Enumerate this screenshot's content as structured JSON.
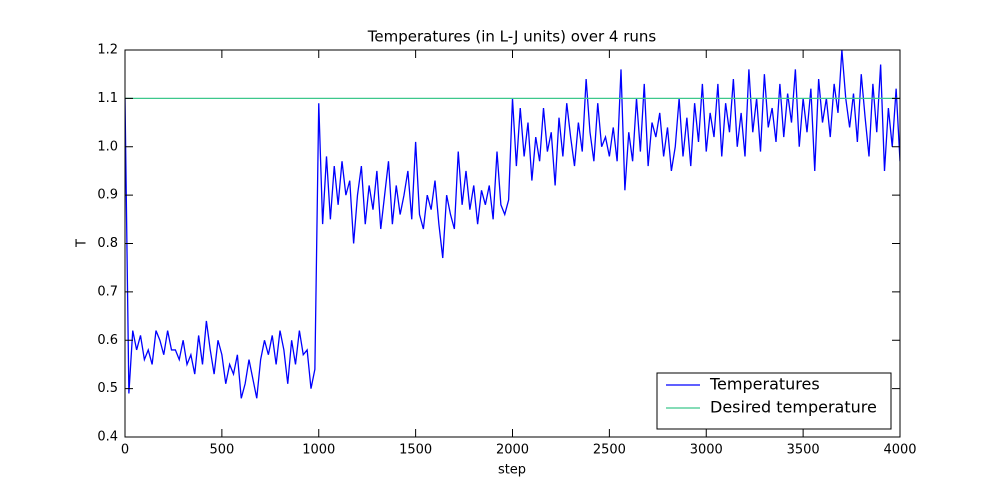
{
  "chart_data": {
    "type": "line",
    "title": "Temperatures (in L-J units) over 4 runs",
    "xlabel": "step",
    "ylabel": "T",
    "xlim": [
      0,
      4000
    ],
    "xticks": [
      0,
      500,
      1000,
      1500,
      2000,
      2500,
      3000,
      3500,
      4000
    ],
    "ylim": [
      0.4,
      1.2
    ],
    "yticks": [
      0.4,
      0.5,
      0.6,
      0.7,
      0.8,
      0.9,
      {
        "value": 1,
        "label": "1.0"
      },
      1.1,
      1.2
    ],
    "legend": "lower right",
    "series": [
      {
        "name": "Temperatures",
        "color": "#0000ff",
        "x": [
          0,
          20,
          40,
          60,
          80,
          100,
          120,
          140,
          160,
          180,
          200,
          220,
          240,
          260,
          280,
          300,
          320,
          340,
          360,
          380,
          400,
          420,
          440,
          460,
          480,
          500,
          520,
          540,
          560,
          580,
          600,
          620,
          640,
          660,
          680,
          700,
          720,
          740,
          760,
          780,
          800,
          820,
          840,
          860,
          880,
          900,
          920,
          940,
          960,
          980,
          1000,
          1020,
          1040,
          1060,
          1080,
          1100,
          1120,
          1140,
          1160,
          1180,
          1200,
          1220,
          1240,
          1260,
          1280,
          1300,
          1320,
          1340,
          1360,
          1380,
          1400,
          1420,
          1440,
          1460,
          1480,
          1500,
          1520,
          1540,
          1560,
          1580,
          1600,
          1620,
          1640,
          1660,
          1680,
          1700,
          1720,
          1740,
          1760,
          1780,
          1800,
          1820,
          1840,
          1860,
          1880,
          1900,
          1920,
          1940,
          1960,
          1980,
          2000,
          2020,
          2040,
          2060,
          2080,
          2100,
          2120,
          2140,
          2160,
          2180,
          2200,
          2220,
          2240,
          2260,
          2280,
          2300,
          2320,
          2340,
          2360,
          2380,
          2400,
          2420,
          2440,
          2460,
          2480,
          2500,
          2520,
          2540,
          2560,
          2580,
          2600,
          2620,
          2640,
          2660,
          2680,
          2700,
          2720,
          2740,
          2760,
          2780,
          2800,
          2820,
          2840,
          2860,
          2880,
          2900,
          2920,
          2940,
          2960,
          2980,
          3000,
          3020,
          3040,
          3060,
          3080,
          3100,
          3120,
          3140,
          3160,
          3180,
          3200,
          3220,
          3240,
          3260,
          3280,
          3300,
          3320,
          3340,
          3360,
          3380,
          3400,
          3420,
          3440,
          3460,
          3480,
          3500,
          3520,
          3540,
          3560,
          3580,
          3600,
          3620,
          3640,
          3660,
          3680,
          3700,
          3720,
          3740,
          3760,
          3780,
          3800,
          3820,
          3840,
          3860,
          3880,
          3900,
          3920,
          3940,
          3960,
          3980,
          4000
        ],
        "values": [
          1.1,
          0.49,
          0.62,
          0.58,
          0.61,
          0.56,
          0.58,
          0.55,
          0.62,
          0.6,
          0.57,
          0.62,
          0.58,
          0.58,
          0.56,
          0.6,
          0.55,
          0.57,
          0.53,
          0.61,
          0.55,
          0.64,
          0.58,
          0.53,
          0.6,
          0.57,
          0.51,
          0.55,
          0.53,
          0.57,
          0.48,
          0.51,
          0.56,
          0.52,
          0.48,
          0.56,
          0.6,
          0.57,
          0.61,
          0.55,
          0.62,
          0.58,
          0.51,
          0.6,
          0.55,
          0.62,
          0.57,
          0.58,
          0.5,
          0.54,
          1.09,
          0.84,
          0.98,
          0.85,
          0.96,
          0.88,
          0.97,
          0.9,
          0.93,
          0.8,
          0.9,
          0.96,
          0.84,
          0.92,
          0.87,
          0.95,
          0.83,
          0.9,
          0.97,
          0.84,
          0.92,
          0.86,
          0.9,
          0.95,
          0.85,
          1.01,
          0.86,
          0.83,
          0.9,
          0.87,
          0.93,
          0.84,
          0.77,
          0.9,
          0.86,
          0.83,
          0.99,
          0.88,
          0.95,
          0.87,
          0.92,
          0.84,
          0.91,
          0.88,
          0.92,
          0.85,
          0.99,
          0.88,
          0.86,
          0.89,
          1.1,
          0.96,
          1.08,
          0.98,
          1.05,
          0.93,
          1.02,
          0.97,
          1.08,
          0.99,
          1.03,
          0.92,
          1.06,
          0.98,
          1.09,
          1.02,
          0.96,
          1.05,
          0.99,
          1.14,
          1.03,
          0.97,
          1.09,
          1.0,
          1.02,
          0.98,
          1.04,
          0.97,
          1.16,
          0.91,
          1.03,
          0.97,
          1.1,
          0.99,
          1.13,
          0.96,
          1.05,
          1.02,
          1.07,
          0.98,
          1.04,
          0.95,
          1.0,
          1.1,
          0.98,
          1.06,
          0.96,
          1.09,
          1.01,
          1.13,
          0.99,
          1.07,
          1.02,
          1.13,
          0.98,
          1.09,
          1.03,
          1.14,
          1.0,
          1.07,
          0.98,
          1.16,
          1.03,
          1.1,
          0.99,
          1.15,
          1.04,
          1.08,
          1.01,
          1.13,
          1.02,
          1.11,
          1.05,
          1.16,
          1.0,
          1.1,
          1.03,
          1.12,
          0.95,
          1.14,
          1.05,
          1.1,
          1.02,
          1.13,
          1.07,
          1.2,
          1.1,
          1.04,
          1.11,
          1.01,
          1.15,
          1.06,
          0.98,
          1.13,
          1.03,
          1.17,
          0.95,
          1.08,
          1.0,
          1.12,
          0.97
        ]
      },
      {
        "name": "Desired temperature",
        "color": "#3cc88c",
        "x": [
          0,
          4000
        ],
        "values": [
          1.1,
          1.1
        ]
      }
    ]
  }
}
